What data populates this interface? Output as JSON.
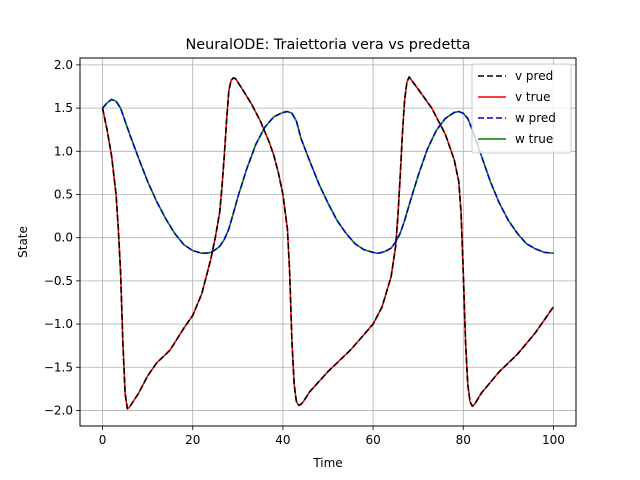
{
  "chart_data": {
    "type": "line",
    "title": "NeuralODE: Traiettoria vera vs predetta",
    "xlabel": "Time",
    "ylabel": "State",
    "xlim": [
      -5,
      105
    ],
    "ylim": [
      -2.18,
      2.08
    ],
    "xticks": [
      0,
      20,
      40,
      60,
      80,
      100
    ],
    "yticks": [
      -2.0,
      -1.5,
      -1.0,
      -0.5,
      0.0,
      0.5,
      1.0,
      1.5,
      2.0
    ],
    "xtick_labels": [
      "0",
      "20",
      "40",
      "60",
      "80",
      "100"
    ],
    "ytick_labels": [
      "−2.0",
      "−1.5",
      "−1.0",
      "−0.5",
      "0.0",
      "0.5",
      "1.0",
      "1.5",
      "2.0"
    ],
    "grid": true,
    "legend_position": "top-right",
    "series": [
      {
        "name": "v pred",
        "color": "#000000",
        "dash": "dashed",
        "x": [
          0,
          1,
          2,
          3,
          3.5,
          4,
          4.5,
          5,
          5.5,
          6,
          8,
          10,
          12,
          15,
          18,
          20,
          22,
          24,
          25,
          26,
          26.5,
          27,
          27.5,
          28,
          28.5,
          29,
          29.5,
          30,
          31,
          33,
          35,
          37,
          38,
          39,
          40,
          41,
          41.5,
          42,
          42.5,
          43,
          43.5,
          44,
          44.5,
          46,
          50,
          55,
          60,
          62,
          64,
          65,
          65.5,
          66,
          66.5,
          67,
          67.5,
          68,
          70,
          73,
          76,
          78,
          79,
          79.5,
          80,
          80.5,
          81,
          81.5,
          82,
          82.5,
          84,
          88,
          92,
          96,
          98,
          100
        ],
        "y": [
          1.5,
          1.25,
          0.95,
          0.5,
          0.1,
          -0.4,
          -1.2,
          -1.8,
          -1.98,
          -1.96,
          -1.8,
          -1.6,
          -1.45,
          -1.3,
          -1.05,
          -0.9,
          -0.65,
          -0.25,
          0.0,
          0.3,
          0.6,
          0.95,
          1.35,
          1.7,
          1.82,
          1.85,
          1.84,
          1.8,
          1.72,
          1.55,
          1.35,
          1.1,
          0.95,
          0.75,
          0.5,
          0.1,
          -0.4,
          -1.2,
          -1.7,
          -1.9,
          -1.94,
          -1.93,
          -1.9,
          -1.78,
          -1.55,
          -1.3,
          -1.0,
          -0.8,
          -0.45,
          -0.1,
          0.25,
          0.7,
          1.2,
          1.6,
          1.8,
          1.86,
          1.72,
          1.5,
          1.2,
          0.9,
          0.65,
          0.3,
          -0.4,
          -1.2,
          -1.7,
          -1.9,
          -1.95,
          -1.93,
          -1.8,
          -1.55,
          -1.35,
          -1.1,
          -0.95,
          -0.8
        ]
      },
      {
        "name": "v true",
        "color": "#ff0000",
        "dash": "solid",
        "x": [
          0,
          1,
          2,
          3,
          3.5,
          4,
          4.5,
          5,
          5.5,
          6,
          8,
          10,
          12,
          15,
          18,
          20,
          22,
          24,
          25,
          26,
          26.5,
          27,
          27.5,
          28,
          28.5,
          29,
          29.5,
          30,
          31,
          33,
          35,
          37,
          38,
          39,
          40,
          41,
          41.5,
          42,
          42.5,
          43,
          43.5,
          44,
          44.5,
          46,
          50,
          55,
          60,
          62,
          64,
          65,
          65.5,
          66,
          66.5,
          67,
          67.5,
          68,
          70,
          73,
          76,
          78,
          79,
          79.5,
          80,
          80.5,
          81,
          81.5,
          82,
          82.5,
          84,
          88,
          92,
          96,
          98,
          100
        ],
        "y": [
          1.5,
          1.25,
          0.95,
          0.5,
          0.1,
          -0.4,
          -1.2,
          -1.8,
          -1.98,
          -1.96,
          -1.8,
          -1.6,
          -1.45,
          -1.3,
          -1.05,
          -0.9,
          -0.65,
          -0.25,
          0.0,
          0.3,
          0.6,
          0.95,
          1.35,
          1.7,
          1.82,
          1.85,
          1.84,
          1.8,
          1.72,
          1.55,
          1.35,
          1.1,
          0.95,
          0.75,
          0.5,
          0.1,
          -0.4,
          -1.2,
          -1.7,
          -1.9,
          -1.94,
          -1.93,
          -1.9,
          -1.78,
          -1.55,
          -1.3,
          -1.0,
          -0.8,
          -0.45,
          -0.1,
          0.25,
          0.7,
          1.2,
          1.6,
          1.8,
          1.86,
          1.72,
          1.5,
          1.2,
          0.9,
          0.65,
          0.3,
          -0.4,
          -1.2,
          -1.7,
          -1.9,
          -1.95,
          -1.93,
          -1.8,
          -1.55,
          -1.35,
          -1.1,
          -0.95,
          -0.8
        ]
      },
      {
        "name": "w pred",
        "color": "#0000cc",
        "dash": "dashed",
        "x": [
          0,
          1,
          2,
          3,
          4,
          5,
          6,
          8,
          10,
          12,
          14,
          16,
          18,
          20,
          22,
          23,
          24,
          25,
          26,
          27,
          28,
          29,
          30,
          32,
          34,
          36,
          38,
          40,
          41,
          42,
          43,
          44,
          46,
          48,
          50,
          52,
          54,
          56,
          58,
          60,
          61,
          62,
          63,
          64,
          65,
          66,
          67,
          68,
          70,
          72,
          74,
          76,
          78,
          79,
          80,
          81,
          82,
          84,
          86,
          88,
          90,
          92,
          94,
          96,
          98,
          100
        ],
        "y": [
          1.5,
          1.56,
          1.6,
          1.58,
          1.5,
          1.35,
          1.2,
          0.92,
          0.65,
          0.42,
          0.22,
          0.05,
          -0.08,
          -0.15,
          -0.18,
          -0.18,
          -0.17,
          -0.14,
          -0.1,
          -0.02,
          0.1,
          0.28,
          0.47,
          0.8,
          1.08,
          1.28,
          1.4,
          1.45,
          1.46,
          1.44,
          1.35,
          1.15,
          0.88,
          0.62,
          0.4,
          0.2,
          0.05,
          -0.07,
          -0.14,
          -0.17,
          -0.18,
          -0.17,
          -0.15,
          -0.12,
          -0.05,
          0.05,
          0.2,
          0.38,
          0.72,
          1.02,
          1.24,
          1.38,
          1.45,
          1.46,
          1.44,
          1.38,
          1.25,
          0.95,
          0.65,
          0.4,
          0.2,
          0.05,
          -0.07,
          -0.13,
          -0.17,
          -0.18
        ]
      },
      {
        "name": "w true",
        "color": "#008000",
        "dash": "solid",
        "x": [
          0,
          1,
          2,
          3,
          4,
          5,
          6,
          8,
          10,
          12,
          14,
          16,
          18,
          20,
          22,
          23,
          24,
          25,
          26,
          27,
          28,
          29,
          30,
          32,
          34,
          36,
          38,
          40,
          41,
          42,
          43,
          44,
          46,
          48,
          50,
          52,
          54,
          56,
          58,
          60,
          61,
          62,
          63,
          64,
          65,
          66,
          67,
          68,
          70,
          72,
          74,
          76,
          78,
          79,
          80,
          81,
          82,
          84,
          86,
          88,
          90,
          92,
          94,
          96,
          98,
          100
        ],
        "y": [
          1.5,
          1.56,
          1.6,
          1.58,
          1.5,
          1.35,
          1.2,
          0.92,
          0.65,
          0.42,
          0.22,
          0.05,
          -0.08,
          -0.15,
          -0.18,
          -0.18,
          -0.17,
          -0.14,
          -0.1,
          -0.02,
          0.1,
          0.28,
          0.47,
          0.8,
          1.08,
          1.28,
          1.4,
          1.45,
          1.46,
          1.44,
          1.35,
          1.15,
          0.88,
          0.62,
          0.4,
          0.2,
          0.05,
          -0.07,
          -0.14,
          -0.17,
          -0.18,
          -0.17,
          -0.15,
          -0.12,
          -0.05,
          0.05,
          0.2,
          0.38,
          0.72,
          1.02,
          1.24,
          1.38,
          1.45,
          1.46,
          1.44,
          1.38,
          1.25,
          0.95,
          0.65,
          0.4,
          0.2,
          0.05,
          -0.07,
          -0.13,
          -0.17,
          -0.18
        ]
      }
    ]
  }
}
